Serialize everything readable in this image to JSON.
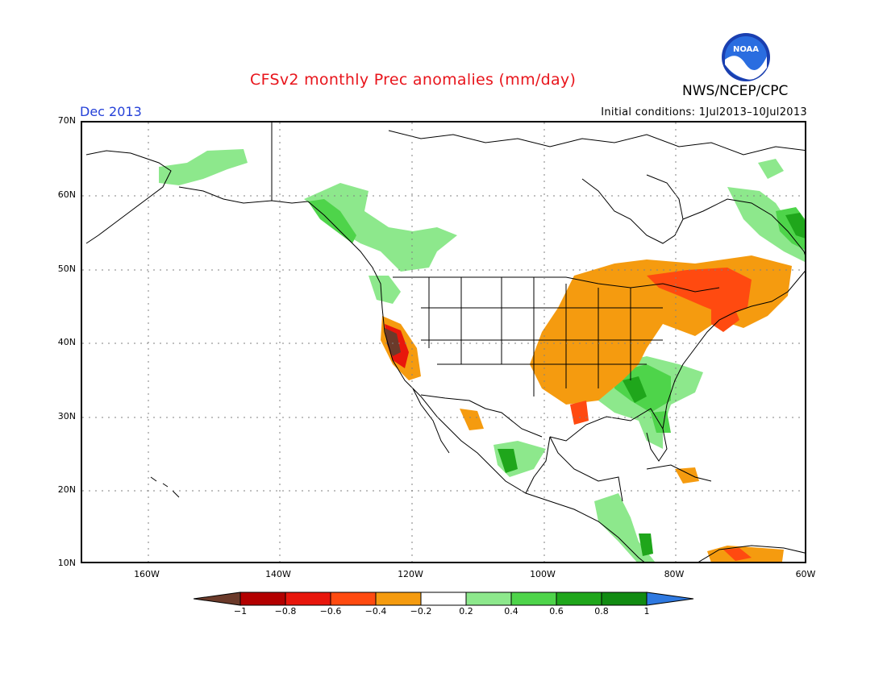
{
  "title": "CFSv2 monthly Prec anomalies (mm/day)",
  "agency": "NWS/NCEP/CPC",
  "logo_text": "NOAA",
  "valid_month": "Dec 2013",
  "initial_conditions": "Initial conditions: 1Jul2013–10Jul2013",
  "lat_labels": [
    "70N",
    "60N",
    "50N",
    "40N",
    "30N",
    "20N",
    "10N"
  ],
  "lon_labels": [
    "160W",
    "140W",
    "120W",
    "100W",
    "80W",
    "60W"
  ],
  "colorbar": {
    "labels": [
      "−1",
      "−0.8",
      "−0.6",
      "−0.4",
      "−0.2",
      "0.2",
      "0.4",
      "0.6",
      "0.8",
      "1"
    ],
    "colors": [
      "#6b3a2a",
      "#b30000",
      "#e8160c",
      "#ff4a10",
      "#f59b0f",
      "#ffffff",
      "#8de88c",
      "#4ed44a",
      "#1fa61b",
      "#118b12",
      "#2f79e0"
    ]
  },
  "map_extent": {
    "lon_min": -170,
    "lon_max": -60,
    "lat_min": 10,
    "lat_max": 70
  }
}
